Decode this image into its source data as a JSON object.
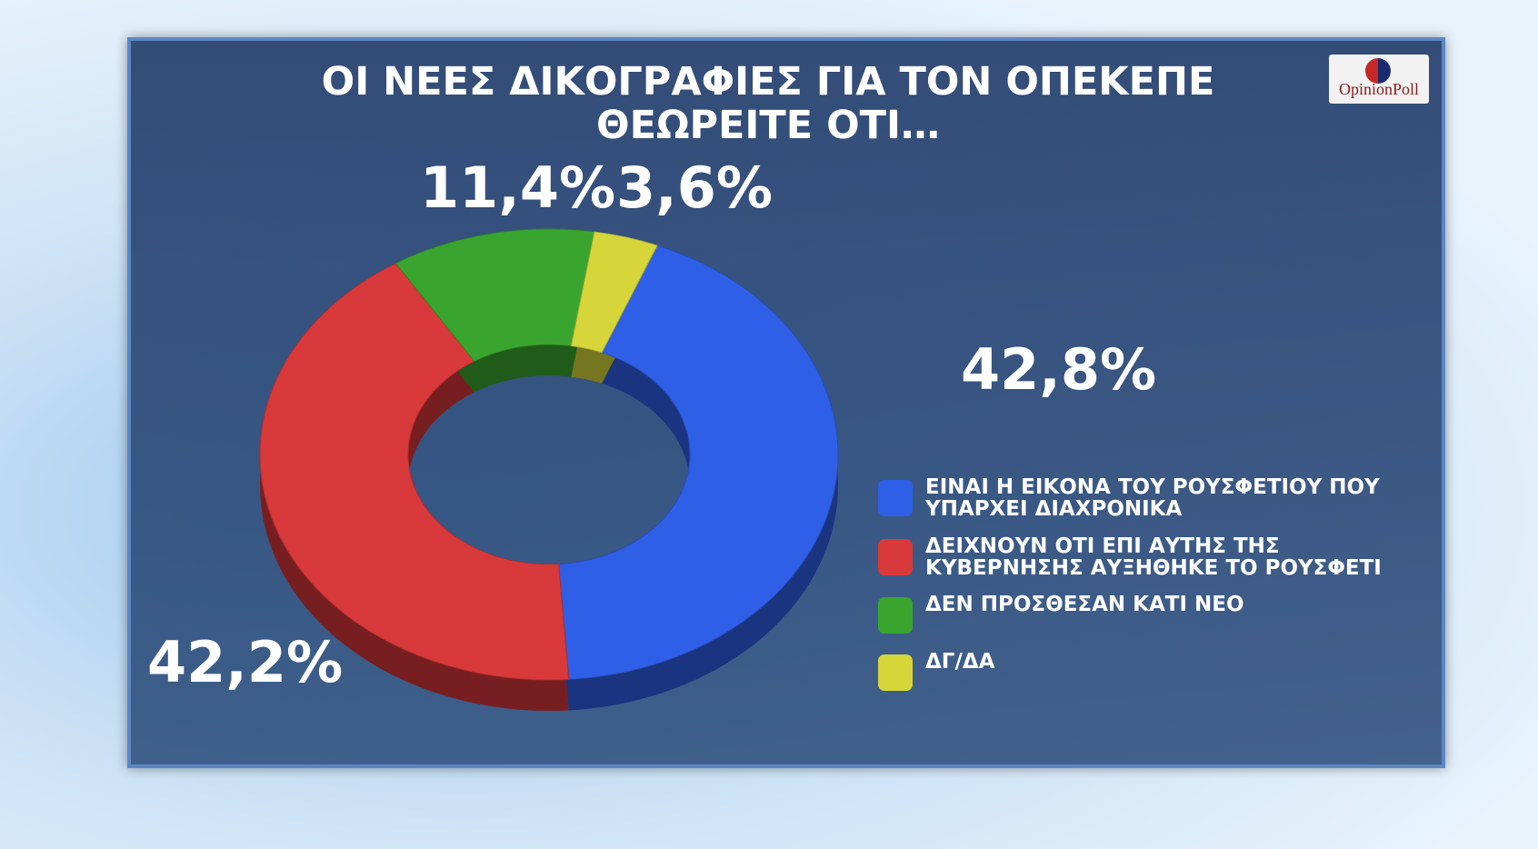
{
  "logo": "OpinionPoll",
  "chart_data": {
    "type": "donut",
    "title": "ΟΙ ΝΕΕΣ ΔΙΚΟΓΡΑΦΙΕΣ ΓΙΑ ΤΟΝ ΟΠΕΚΕΠΕ ΘΕΩΡΕΙΤΕ ΟΤΙ…",
    "categories": [
      "ΕΙΝΑΙ Η ΕΙΚΟΝΑ ΤΟΥ ΡΟΥΣΦΕΤΙΟΥ ΠΟΥ ΥΠΑΡΧΕΙ ΔΙΑΧΡΟΝΙΚΑ",
      "ΔΕΙΧΝΟΥΝ ΟΤΙ ΕΠΙ ΑΥΤΗΣ ΤΗΣ ΚΥΒΕΡΝΗΣΗΣ ΑΥΞΗΘΗΚΕ ΤΟ ΡΟΥΣΦΕΤΙ",
      "ΔΕΝ ΠΡΟΣΘΕΣΑΝ ΚΑΤΙ ΝΕΟ",
      "ΔΓ/ΔΑ"
    ],
    "values": [
      42.8,
      42.2,
      11.4,
      3.6
    ],
    "value_labels": [
      "42,8%",
      "42,2%",
      "11,4%",
      "3,6%"
    ],
    "colors": [
      "#2f5fe6",
      "#d8393a",
      "#3aa52e",
      "#d6d63a"
    ]
  }
}
